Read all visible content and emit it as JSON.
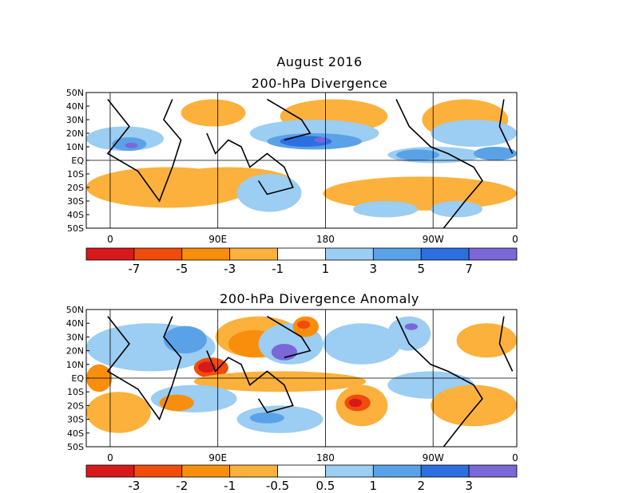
{
  "figure": {
    "title": "August 2016"
  },
  "panels": [
    {
      "id": "divergence",
      "title": "200-hPa Divergence",
      "lat_labels": [
        "50N",
        "40N",
        "30N",
        "20N",
        "10N",
        "EQ",
        "10S",
        "20S",
        "30S",
        "40S",
        "50S"
      ],
      "lon_labels": [
        "0",
        "90E",
        "180",
        "90W",
        "0"
      ],
      "colorbar": {
        "colors": [
          "#d7191c",
          "#f04c0c",
          "#f98e0c",
          "#fbb13c",
          "#ffffff",
          "#9ccdf2",
          "#5aa2e8",
          "#2c6fe0",
          "#7b68d8"
        ],
        "labels": [
          "-7",
          "-5",
          "-3",
          "-1",
          "1",
          "3",
          "5",
          "7"
        ]
      }
    },
    {
      "id": "anomaly",
      "title": "200-hPa Divergence Anomaly",
      "lat_labels": [
        "50N",
        "40N",
        "30N",
        "20N",
        "10N",
        "EQ",
        "10S",
        "20S",
        "30S",
        "40S",
        "50S"
      ],
      "lon_labels": [
        "0",
        "90E",
        "180",
        "90W",
        "0"
      ],
      "colorbar": {
        "colors": [
          "#d7191c",
          "#f04c0c",
          "#f98e0c",
          "#fbb13c",
          "#ffffff",
          "#9ccdf2",
          "#5aa2e8",
          "#2c6fe0",
          "#7b68d8"
        ],
        "labels": [
          "-3",
          "-2",
          "-1",
          "-0.5",
          "0.5",
          "1",
          "2",
          "3"
        ]
      }
    }
  ]
}
